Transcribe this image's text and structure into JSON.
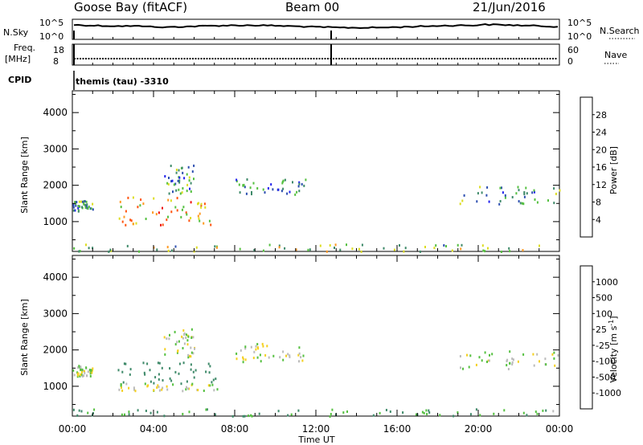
{
  "header": {
    "station": "Goose Bay (fitACF)",
    "beam": "Beam 00",
    "date": "21/Jun/2016"
  },
  "strip_labels": {
    "nsky": "N.Sky",
    "freq_line1": "Freq.",
    "freq_line2": "[MHz]",
    "cpid": "CPID",
    "nsearch": "N.Search",
    "nave": "Nave",
    "nsky_top": "10^5",
    "nsky_bottom": "10^0",
    "nsearch_top": "10^5",
    "nsearch_bottom": "10^0",
    "freq_top": "18",
    "freq_bottom": "8",
    "nave_top": "60",
    "nave_bottom": "0",
    "cpid_text": "themis (tau) -3310"
  },
  "axes": {
    "ylabel": "Slant Range [km]",
    "xlabel": "Time UT",
    "yticks": [
      "1000",
      "2000",
      "3000",
      "4000"
    ],
    "xticks": [
      "00:00",
      "04:00",
      "08:00",
      "12:00",
      "16:00",
      "20:00",
      "00:00"
    ]
  },
  "colorbars": {
    "power_label": "Power [dB]",
    "power_ticks": [
      "4",
      "8",
      "12",
      "16",
      "20",
      "24",
      "28"
    ],
    "power_colors": [
      "#2222ee",
      "#2d4fb0",
      "#3f8a6a",
      "#55c040",
      "#dddd22",
      "#ff9922",
      "#ff5511",
      "#ee1111"
    ],
    "velocity_label": "Velocity [m s",
    "velocity_sup": "-1",
    "velocity_label_close": "]",
    "velocity_ticks": [
      "-1000",
      "-500",
      "-100",
      "-25",
      "25",
      "100",
      "500",
      "1000"
    ],
    "velocity_colors": [
      "#ee1111",
      "#ff5511",
      "#ff9922",
      "#f4d020",
      "#bbbbbb",
      "#55c040",
      "#3f8a6a",
      "#2d4fb0",
      "#2222ee"
    ]
  },
  "chart_data": [
    {
      "type": "heatmap",
      "title": "",
      "quantity": "Power [dB]",
      "xlabel": "Time UT",
      "ylabel": "Slant Range [km]",
      "xlim": [
        0,
        24
      ],
      "ylim": [
        180,
        4600
      ],
      "xticks_hours": [
        0,
        4,
        8,
        12,
        16,
        20,
        24
      ],
      "yticks_km": [
        1000,
        2000,
        3000,
        4000
      ],
      "colorbar_range": [
        0,
        30
      ],
      "regions": [
        {
          "t": [
            0.0,
            1.0
          ],
          "r": [
            1300,
            1600
          ],
          "value": 9
        },
        {
          "t": [
            2.2,
            7.2
          ],
          "r": [
            900,
            1700
          ],
          "value": 20
        },
        {
          "t": [
            4.5,
            6.0
          ],
          "r": [
            1800,
            2600
          ],
          "value": 10
        },
        {
          "t": [
            8.0,
            11.5
          ],
          "r": [
            1700,
            2200
          ],
          "value": 8
        },
        {
          "t": [
            0.0,
            24.0
          ],
          "r": [
            200,
            400
          ],
          "value": 14
        },
        {
          "t": [
            19.0,
            24.0
          ],
          "r": [
            1500,
            2000
          ],
          "value": 10
        }
      ]
    },
    {
      "type": "heatmap",
      "title": "",
      "quantity": "Velocity [m s-1]",
      "xlabel": "Time UT",
      "ylabel": "Slant Range [km]",
      "xlim": [
        0,
        24
      ],
      "ylim": [
        180,
        4600
      ],
      "xticks_hours": [
        0,
        4,
        8,
        12,
        16,
        20,
        24
      ],
      "yticks_km": [
        1000,
        2000,
        3000,
        4000
      ],
      "colorbar_range": [
        -1000,
        1000
      ],
      "regions": [
        {
          "t": [
            0.0,
            1.0
          ],
          "r": [
            1300,
            1600
          ],
          "value": 0
        },
        {
          "t": [
            2.2,
            7.2
          ],
          "r": [
            1100,
            1700
          ],
          "value": 300
        },
        {
          "t": [
            2.2,
            7.2
          ],
          "r": [
            900,
            1100
          ],
          "value": 0
        },
        {
          "t": [
            4.5,
            6.0
          ],
          "r": [
            1800,
            2600
          ],
          "value": 0
        },
        {
          "t": [
            8.0,
            11.5
          ],
          "r": [
            1700,
            2200
          ],
          "value": 0
        },
        {
          "t": [
            0.0,
            24.0
          ],
          "r": [
            200,
            400
          ],
          "value": 100
        },
        {
          "t": [
            19.0,
            24.0
          ],
          "r": [
            1500,
            2000
          ],
          "value": 0
        }
      ]
    }
  ]
}
